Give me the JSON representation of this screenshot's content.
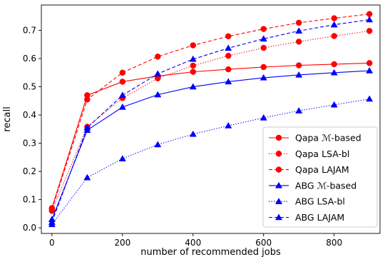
{
  "chart_data": {
    "type": "line",
    "title": "",
    "xlabel": "number of recommended jobs",
    "ylabel": "recall",
    "xlim": [
      -30,
      930
    ],
    "ylim": [
      -0.02,
      0.79
    ],
    "xticks": [
      0,
      200,
      400,
      600,
      800
    ],
    "yticks": [
      0.0,
      0.1,
      0.2,
      0.3,
      0.4,
      0.5,
      0.6,
      0.7
    ],
    "x": [
      0,
      100,
      200,
      300,
      400,
      500,
      600,
      700,
      800,
      900
    ],
    "legend_position": "bottom-right",
    "grid": false,
    "series": [
      {
        "name": "Qapa ℳ-based",
        "color": "#ff0000",
        "marker": "circle",
        "linestyle": "solid",
        "values": [
          0.07,
          0.47,
          0.518,
          0.538,
          0.553,
          0.562,
          0.57,
          0.576,
          0.58,
          0.584
        ]
      },
      {
        "name": "Qapa LSA-bl",
        "color": "#ff0000",
        "marker": "circle",
        "linestyle": "dotted",
        "values": [
          0.06,
          0.358,
          0.46,
          0.53,
          0.575,
          0.61,
          0.638,
          0.66,
          0.68,
          0.698
        ]
      },
      {
        "name": "Qapa LAJAM",
        "color": "#ff0000",
        "marker": "circle",
        "linestyle": "dashed",
        "values": [
          0.065,
          0.455,
          0.55,
          0.607,
          0.647,
          0.679,
          0.705,
          0.727,
          0.743,
          0.758
        ]
      },
      {
        "name": "ABG ℳ-based",
        "color": "#0000ff",
        "marker": "triangle",
        "linestyle": "solid",
        "values": [
          0.03,
          0.346,
          0.428,
          0.472,
          0.5,
          0.518,
          0.532,
          0.542,
          0.55,
          0.557
        ]
      },
      {
        "name": "ABG LSA-bl",
        "color": "#0000ff",
        "marker": "triangle",
        "linestyle": "dotted",
        "values": [
          0.012,
          0.178,
          0.245,
          0.295,
          0.332,
          0.362,
          0.39,
          0.415,
          0.436,
          0.457
        ]
      },
      {
        "name": "ABG LAJAM",
        "color": "#0000ff",
        "marker": "triangle",
        "linestyle": "dashed",
        "values": [
          0.02,
          0.355,
          0.47,
          0.546,
          0.598,
          0.637,
          0.67,
          0.698,
          0.72,
          0.738
        ]
      }
    ]
  }
}
